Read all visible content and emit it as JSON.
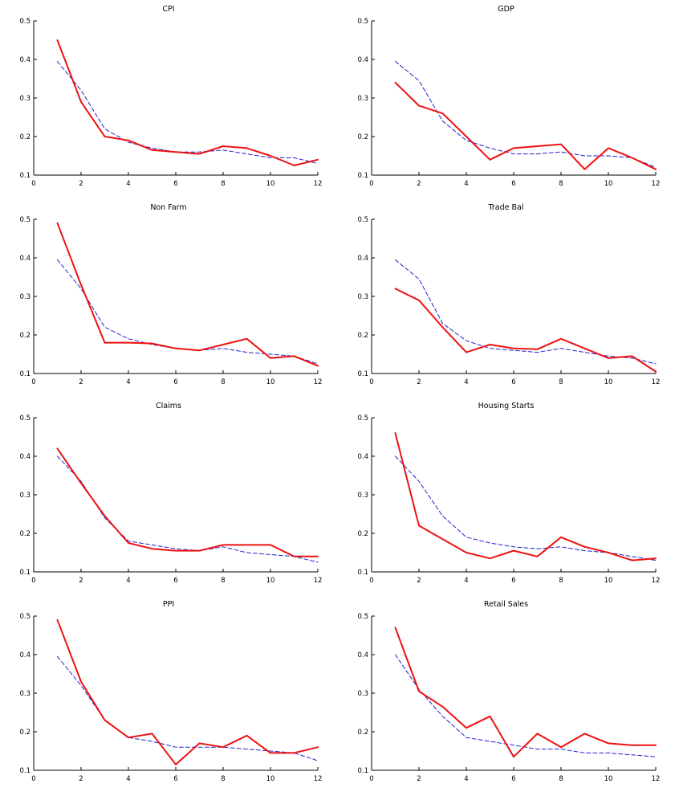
{
  "page": {
    "background": "#ffffff"
  },
  "chart_data": [
    {
      "type": "line",
      "title": "CPI",
      "x": [
        1,
        2,
        3,
        4,
        5,
        6,
        7,
        8,
        9,
        10,
        11,
        12
      ],
      "xlim": [
        0,
        12
      ],
      "ylim": [
        0.1,
        0.5
      ],
      "xticks": [
        0,
        2,
        4,
        6,
        8,
        10,
        12
      ],
      "yticks": [
        0.1,
        0.2,
        0.3,
        0.4,
        0.5
      ],
      "series": [
        {
          "name": "dashed-blue",
          "color": "#2222cc",
          "style": "dashed",
          "width": 1,
          "values": [
            0.395,
            0.32,
            0.22,
            0.185,
            0.17,
            0.16,
            0.16,
            0.165,
            0.155,
            0.145,
            0.145,
            0.13
          ]
        },
        {
          "name": "solid-red",
          "color": "#ee1111",
          "style": "solid",
          "width": 2,
          "values": [
            0.45,
            0.29,
            0.2,
            0.19,
            0.165,
            0.16,
            0.155,
            0.175,
            0.17,
            0.15,
            0.125,
            0.14
          ]
        }
      ]
    },
    {
      "type": "line",
      "title": "GDP",
      "x": [
        1,
        2,
        3,
        4,
        5,
        6,
        7,
        8,
        9,
        10,
        11,
        12
      ],
      "xlim": [
        0,
        12
      ],
      "ylim": [
        0.1,
        0.5
      ],
      "xticks": [
        0,
        2,
        4,
        6,
        8,
        10,
        12
      ],
      "yticks": [
        0.1,
        0.2,
        0.3,
        0.4,
        0.5
      ],
      "series": [
        {
          "name": "dashed-blue",
          "color": "#2222cc",
          "style": "dashed",
          "width": 1,
          "values": [
            0.395,
            0.345,
            0.24,
            0.19,
            0.17,
            0.155,
            0.155,
            0.16,
            0.15,
            0.15,
            0.145,
            0.12
          ]
        },
        {
          "name": "solid-red",
          "color": "#ee1111",
          "style": "solid",
          "width": 2,
          "values": [
            0.34,
            0.28,
            0.26,
            0.2,
            0.14,
            0.17,
            0.175,
            0.18,
            0.115,
            0.17,
            0.145,
            0.115
          ]
        }
      ]
    },
    {
      "type": "line",
      "title": "Non Farm",
      "x": [
        1,
        2,
        3,
        4,
        5,
        6,
        7,
        8,
        9,
        10,
        11,
        12
      ],
      "xlim": [
        0,
        12
      ],
      "ylim": [
        0.1,
        0.5
      ],
      "xticks": [
        0,
        2,
        4,
        6,
        8,
        10,
        12
      ],
      "yticks": [
        0.1,
        0.2,
        0.3,
        0.4,
        0.5
      ],
      "series": [
        {
          "name": "dashed-blue",
          "color": "#2222cc",
          "style": "dashed",
          "width": 1,
          "values": [
            0.395,
            0.32,
            0.22,
            0.19,
            0.175,
            0.165,
            0.16,
            0.165,
            0.155,
            0.15,
            0.145,
            0.125
          ]
        },
        {
          "name": "solid-red",
          "color": "#ee1111",
          "style": "solid",
          "width": 2,
          "values": [
            0.49,
            0.33,
            0.18,
            0.18,
            0.178,
            0.165,
            0.16,
            0.175,
            0.19,
            0.14,
            0.145,
            0.12
          ]
        }
      ]
    },
    {
      "type": "line",
      "title": "Trade Bal",
      "x": [
        1,
        2,
        3,
        4,
        5,
        6,
        7,
        8,
        9,
        10,
        11,
        12
      ],
      "xlim": [
        0,
        12
      ],
      "ylim": [
        0.1,
        0.5
      ],
      "xticks": [
        0,
        2,
        4,
        6,
        8,
        10,
        12
      ],
      "yticks": [
        0.1,
        0.2,
        0.3,
        0.4,
        0.5
      ],
      "series": [
        {
          "name": "dashed-blue",
          "color": "#2222cc",
          "style": "dashed",
          "width": 1,
          "values": [
            0.395,
            0.345,
            0.23,
            0.185,
            0.165,
            0.16,
            0.155,
            0.165,
            0.155,
            0.145,
            0.14,
            0.125
          ]
        },
        {
          "name": "solid-red",
          "color": "#ee1111",
          "style": "solid",
          "width": 2,
          "values": [
            0.32,
            0.29,
            0.22,
            0.155,
            0.175,
            0.165,
            0.163,
            0.19,
            0.165,
            0.14,
            0.145,
            0.105
          ]
        }
      ]
    },
    {
      "type": "line",
      "title": "Claims",
      "x": [
        1,
        2,
        3,
        4,
        5,
        6,
        7,
        8,
        9,
        10,
        11,
        12
      ],
      "xlim": [
        0,
        12
      ],
      "ylim": [
        0.1,
        0.5
      ],
      "xticks": [
        0,
        2,
        4,
        6,
        8,
        10,
        12
      ],
      "yticks": [
        0.1,
        0.2,
        0.3,
        0.4,
        0.5
      ],
      "series": [
        {
          "name": "dashed-blue",
          "color": "#2222cc",
          "style": "dashed",
          "width": 1,
          "values": [
            0.4,
            0.335,
            0.24,
            0.18,
            0.17,
            0.16,
            0.155,
            0.165,
            0.15,
            0.145,
            0.14,
            0.125
          ]
        },
        {
          "name": "solid-red",
          "color": "#ee1111",
          "style": "solid",
          "width": 2,
          "values": [
            0.42,
            0.33,
            0.245,
            0.175,
            0.16,
            0.155,
            0.155,
            0.17,
            0.17,
            0.17,
            0.14,
            0.14
          ]
        }
      ]
    },
    {
      "type": "line",
      "title": "Housing Starts",
      "x": [
        1,
        2,
        3,
        4,
        5,
        6,
        7,
        8,
        9,
        10,
        11,
        12
      ],
      "xlim": [
        0,
        12
      ],
      "ylim": [
        0.1,
        0.5
      ],
      "xticks": [
        0,
        2,
        4,
        6,
        8,
        10,
        12
      ],
      "yticks": [
        0.1,
        0.2,
        0.3,
        0.4,
        0.5
      ],
      "series": [
        {
          "name": "dashed-blue",
          "color": "#2222cc",
          "style": "dashed",
          "width": 1,
          "values": [
            0.4,
            0.335,
            0.245,
            0.19,
            0.175,
            0.165,
            0.16,
            0.165,
            0.155,
            0.15,
            0.14,
            0.13
          ]
        },
        {
          "name": "solid-red",
          "color": "#ee1111",
          "style": "solid",
          "width": 2,
          "values": [
            0.46,
            0.22,
            0.185,
            0.15,
            0.135,
            0.155,
            0.14,
            0.19,
            0.165,
            0.15,
            0.13,
            0.135
          ]
        }
      ]
    },
    {
      "type": "line",
      "title": "PPI",
      "x": [
        1,
        2,
        3,
        4,
        5,
        6,
        7,
        8,
        9,
        10,
        11,
        12
      ],
      "xlim": [
        0,
        12
      ],
      "ylim": [
        0.1,
        0.5
      ],
      "xticks": [
        0,
        2,
        4,
        6,
        8,
        10,
        12
      ],
      "yticks": [
        0.1,
        0.2,
        0.3,
        0.4,
        0.5
      ],
      "series": [
        {
          "name": "dashed-blue",
          "color": "#2222cc",
          "style": "dashed",
          "width": 1,
          "values": [
            0.395,
            0.32,
            0.23,
            0.185,
            0.175,
            0.16,
            0.16,
            0.16,
            0.155,
            0.15,
            0.145,
            0.125
          ]
        },
        {
          "name": "solid-red",
          "color": "#ee1111",
          "style": "solid",
          "width": 2,
          "values": [
            0.49,
            0.33,
            0.23,
            0.185,
            0.195,
            0.115,
            0.17,
            0.16,
            0.19,
            0.145,
            0.145,
            0.16
          ]
        }
      ]
    },
    {
      "type": "line",
      "title": "Retail Sales",
      "x": [
        1,
        2,
        3,
        4,
        5,
        6,
        7,
        8,
        9,
        10,
        11,
        12
      ],
      "xlim": [
        0,
        12
      ],
      "ylim": [
        0.1,
        0.5
      ],
      "xticks": [
        0,
        2,
        4,
        6,
        8,
        10,
        12
      ],
      "yticks": [
        0.1,
        0.2,
        0.3,
        0.4,
        0.5
      ],
      "series": [
        {
          "name": "dashed-blue",
          "color": "#2222cc",
          "style": "dashed",
          "width": 1,
          "values": [
            0.4,
            0.31,
            0.24,
            0.185,
            0.175,
            0.165,
            0.155,
            0.155,
            0.145,
            0.145,
            0.14,
            0.135
          ]
        },
        {
          "name": "solid-red",
          "color": "#ee1111",
          "style": "solid",
          "width": 2,
          "values": [
            0.47,
            0.305,
            0.265,
            0.21,
            0.24,
            0.135,
            0.195,
            0.16,
            0.195,
            0.17,
            0.165,
            0.165
          ]
        }
      ]
    }
  ]
}
